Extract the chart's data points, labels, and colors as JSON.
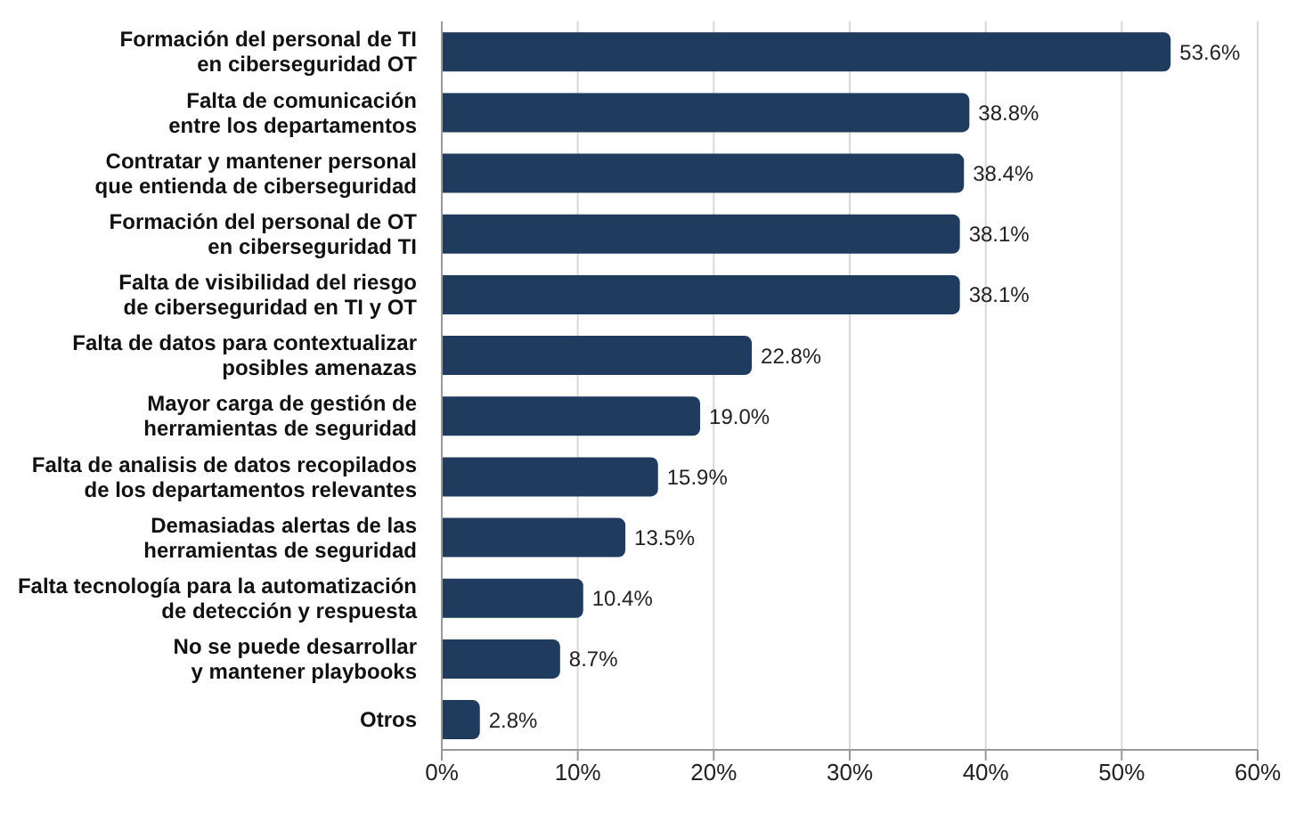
{
  "chart_data": {
    "type": "bar",
    "orientation": "horizontal",
    "categories": [
      "Formación del personal de TI\nen ciberseguridad OT",
      "Falta de comunicación\nentre los departamentos",
      "Contratar y mantener personal\nque entienda de ciberseguridad",
      "Formación del personal de OT\nen ciberseguridad TI",
      "Falta de visibilidad del riesgo\nde ciberseguridad en TI y OT",
      "Falta de datos para contextualizar\nposibles amenazas",
      "Mayor carga de gestión de\nherramientas de seguridad",
      "Falta de analisis de datos recopilados\nde los departamentos relevantes",
      "Demasiadas alertas de las\nherramientas de seguridad",
      "Falta tecnología para la automatización\nde detección y respuesta",
      "No se puede desarrollar\ny mantener playbooks",
      "Otros"
    ],
    "values": [
      53.6,
      38.8,
      38.4,
      38.1,
      38.1,
      22.8,
      19.0,
      15.9,
      13.5,
      10.4,
      8.7,
      2.8
    ],
    "value_labels": [
      "53.6%",
      "38.8%",
      "38.4%",
      "38.1%",
      "38.1%",
      "22.8%",
      "19.0%",
      "15.9%",
      "13.5%",
      "10.4%",
      "8.7%",
      "2.8%"
    ],
    "color": "#1f3b5e",
    "xlim": [
      0,
      60
    ],
    "xticks": [
      {
        "value": 0,
        "label": "0%"
      },
      {
        "value": 10,
        "label": "10%"
      },
      {
        "value": 20,
        "label": "20%"
      },
      {
        "value": 30,
        "label": "30%"
      },
      {
        "value": 40,
        "label": "40%"
      },
      {
        "value": 50,
        "label": "50%"
      },
      {
        "value": 60,
        "label": "60%"
      }
    ],
    "grid": "x"
  }
}
